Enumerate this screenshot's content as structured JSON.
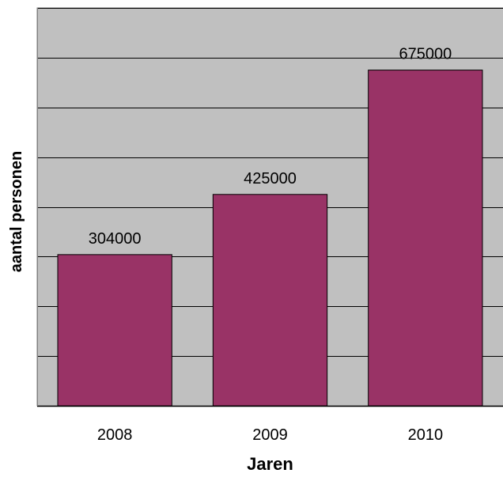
{
  "chart_data": {
    "type": "bar",
    "categories": [
      "2008",
      "2009",
      "2010"
    ],
    "values": [
      304000,
      425000,
      675000
    ],
    "data_labels": [
      "304000",
      "425000",
      "675000"
    ],
    "xlabel": "Jaren",
    "ylabel": "aantal personen",
    "ylim": [
      0,
      800000
    ],
    "grid_step": 100000,
    "grid": true,
    "legend": "none",
    "colors": {
      "bar": "#993366",
      "plot_background": "#c0c0c0",
      "gridline": "#000000",
      "text": "#000000"
    }
  }
}
